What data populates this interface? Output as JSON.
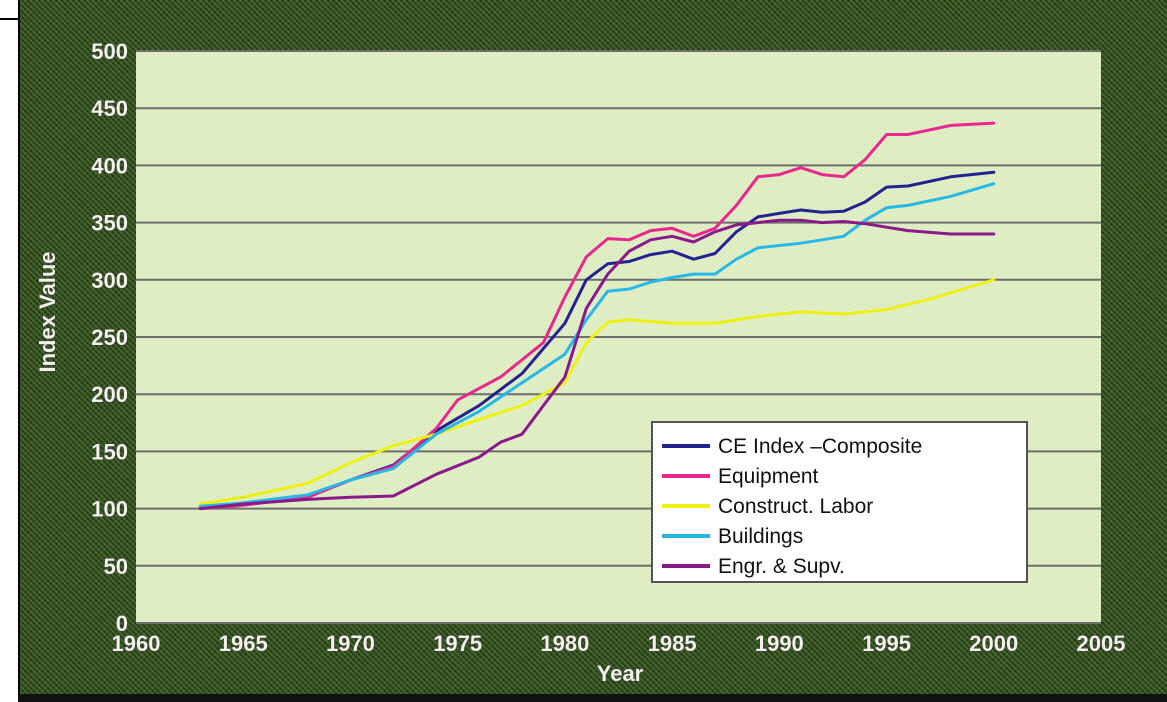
{
  "chart_data": {
    "type": "line",
    "title": "",
    "xlabel": "Year",
    "ylabel": "Index Value",
    "xlim": [
      1960,
      2005
    ],
    "ylim": [
      0,
      500
    ],
    "x_ticks": [
      1960,
      1965,
      1970,
      1975,
      1980,
      1985,
      1990,
      1995,
      2000,
      2005
    ],
    "y_ticks": [
      0,
      50,
      100,
      150,
      200,
      250,
      300,
      350,
      400,
      450,
      500
    ],
    "grid": true,
    "legend_position": "bottom-right",
    "series": [
      {
        "name": "CE Index –Composite",
        "color": "#23238f",
        "points": [
          [
            1963,
            101
          ],
          [
            1965,
            104
          ],
          [
            1968,
            110
          ],
          [
            1970,
            125
          ],
          [
            1972,
            138
          ],
          [
            1974,
            168
          ],
          [
            1976,
            190
          ],
          [
            1978,
            218
          ],
          [
            1980,
            262
          ],
          [
            1981,
            300
          ],
          [
            1982,
            314
          ],
          [
            1983,
            316
          ],
          [
            1984,
            322
          ],
          [
            1985,
            325
          ],
          [
            1986,
            318
          ],
          [
            1987,
            323
          ],
          [
            1988,
            342
          ],
          [
            1989,
            355
          ],
          [
            1990,
            358
          ],
          [
            1991,
            361
          ],
          [
            1992,
            359
          ],
          [
            1993,
            360
          ],
          [
            1994,
            368
          ],
          [
            1995,
            381
          ],
          [
            1996,
            382
          ],
          [
            1998,
            390
          ],
          [
            2000,
            394
          ]
        ]
      },
      {
        "name": "Equipment",
        "color": "#e8288c",
        "points": [
          [
            1963,
            100
          ],
          [
            1965,
            103
          ],
          [
            1968,
            110
          ],
          [
            1970,
            125
          ],
          [
            1972,
            137
          ],
          [
            1974,
            170
          ],
          [
            1975,
            195
          ],
          [
            1977,
            215
          ],
          [
            1979,
            245
          ],
          [
            1980,
            285
          ],
          [
            1981,
            320
          ],
          [
            1982,
            336
          ],
          [
            1983,
            335
          ],
          [
            1984,
            343
          ],
          [
            1985,
            345
          ],
          [
            1986,
            338
          ],
          [
            1987,
            345
          ],
          [
            1988,
            365
          ],
          [
            1989,
            390
          ],
          [
            1990,
            392
          ],
          [
            1991,
            398
          ],
          [
            1992,
            392
          ],
          [
            1993,
            390
          ],
          [
            1994,
            405
          ],
          [
            1995,
            427
          ],
          [
            1996,
            427
          ],
          [
            1998,
            435
          ],
          [
            2000,
            437
          ]
        ]
      },
      {
        "name": "Construct. Labor",
        "color": "#f0f010",
        "points": [
          [
            1963,
            104
          ],
          [
            1965,
            110
          ],
          [
            1968,
            122
          ],
          [
            1970,
            140
          ],
          [
            1972,
            155
          ],
          [
            1974,
            165
          ],
          [
            1976,
            178
          ],
          [
            1978,
            190
          ],
          [
            1980,
            210
          ],
          [
            1981,
            245
          ],
          [
            1982,
            263
          ],
          [
            1983,
            265
          ],
          [
            1985,
            262
          ],
          [
            1987,
            262
          ],
          [
            1989,
            268
          ],
          [
            1991,
            272
          ],
          [
            1993,
            270
          ],
          [
            1995,
            274
          ],
          [
            1997,
            283
          ],
          [
            2000,
            300
          ]
        ]
      },
      {
        "name": "Buildings",
        "color": "#28b8e8",
        "points": [
          [
            1963,
            102
          ],
          [
            1965,
            105
          ],
          [
            1968,
            112
          ],
          [
            1970,
            125
          ],
          [
            1972,
            135
          ],
          [
            1974,
            165
          ],
          [
            1976,
            185
          ],
          [
            1978,
            210
          ],
          [
            1980,
            235
          ],
          [
            1981,
            265
          ],
          [
            1982,
            290
          ],
          [
            1983,
            292
          ],
          [
            1984,
            298
          ],
          [
            1985,
            302
          ],
          [
            1986,
            305
          ],
          [
            1987,
            305
          ],
          [
            1988,
            318
          ],
          [
            1989,
            328
          ],
          [
            1990,
            330
          ],
          [
            1991,
            332
          ],
          [
            1992,
            335
          ],
          [
            1993,
            338
          ],
          [
            1994,
            352
          ],
          [
            1995,
            363
          ],
          [
            1996,
            365
          ],
          [
            1998,
            373
          ],
          [
            2000,
            384
          ]
        ]
      },
      {
        "name": "Engr. & Supv.",
        "color": "#8a1a8a",
        "points": [
          [
            1963,
            100
          ],
          [
            1965,
            104
          ],
          [
            1968,
            108
          ],
          [
            1970,
            110
          ],
          [
            1972,
            111
          ],
          [
            1974,
            130
          ],
          [
            1976,
            145
          ],
          [
            1977,
            158
          ],
          [
            1978,
            165
          ],
          [
            1979,
            190
          ],
          [
            1980,
            215
          ],
          [
            1981,
            275
          ],
          [
            1982,
            305
          ],
          [
            1983,
            325
          ],
          [
            1984,
            335
          ],
          [
            1985,
            338
          ],
          [
            1986,
            333
          ],
          [
            1987,
            342
          ],
          [
            1988,
            348
          ],
          [
            1989,
            350
          ],
          [
            1990,
            352
          ],
          [
            1991,
            352
          ],
          [
            1992,
            350
          ],
          [
            1993,
            351
          ],
          [
            1994,
            349
          ],
          [
            1995,
            346
          ],
          [
            1996,
            343
          ],
          [
            1998,
            340
          ],
          [
            2000,
            340
          ]
        ]
      }
    ]
  },
  "colors": {
    "frame": "#2f4a1e",
    "plot_area": "#e2f0c8",
    "gridline": "#6e6e6e",
    "legend_bg": "#ffffff"
  }
}
